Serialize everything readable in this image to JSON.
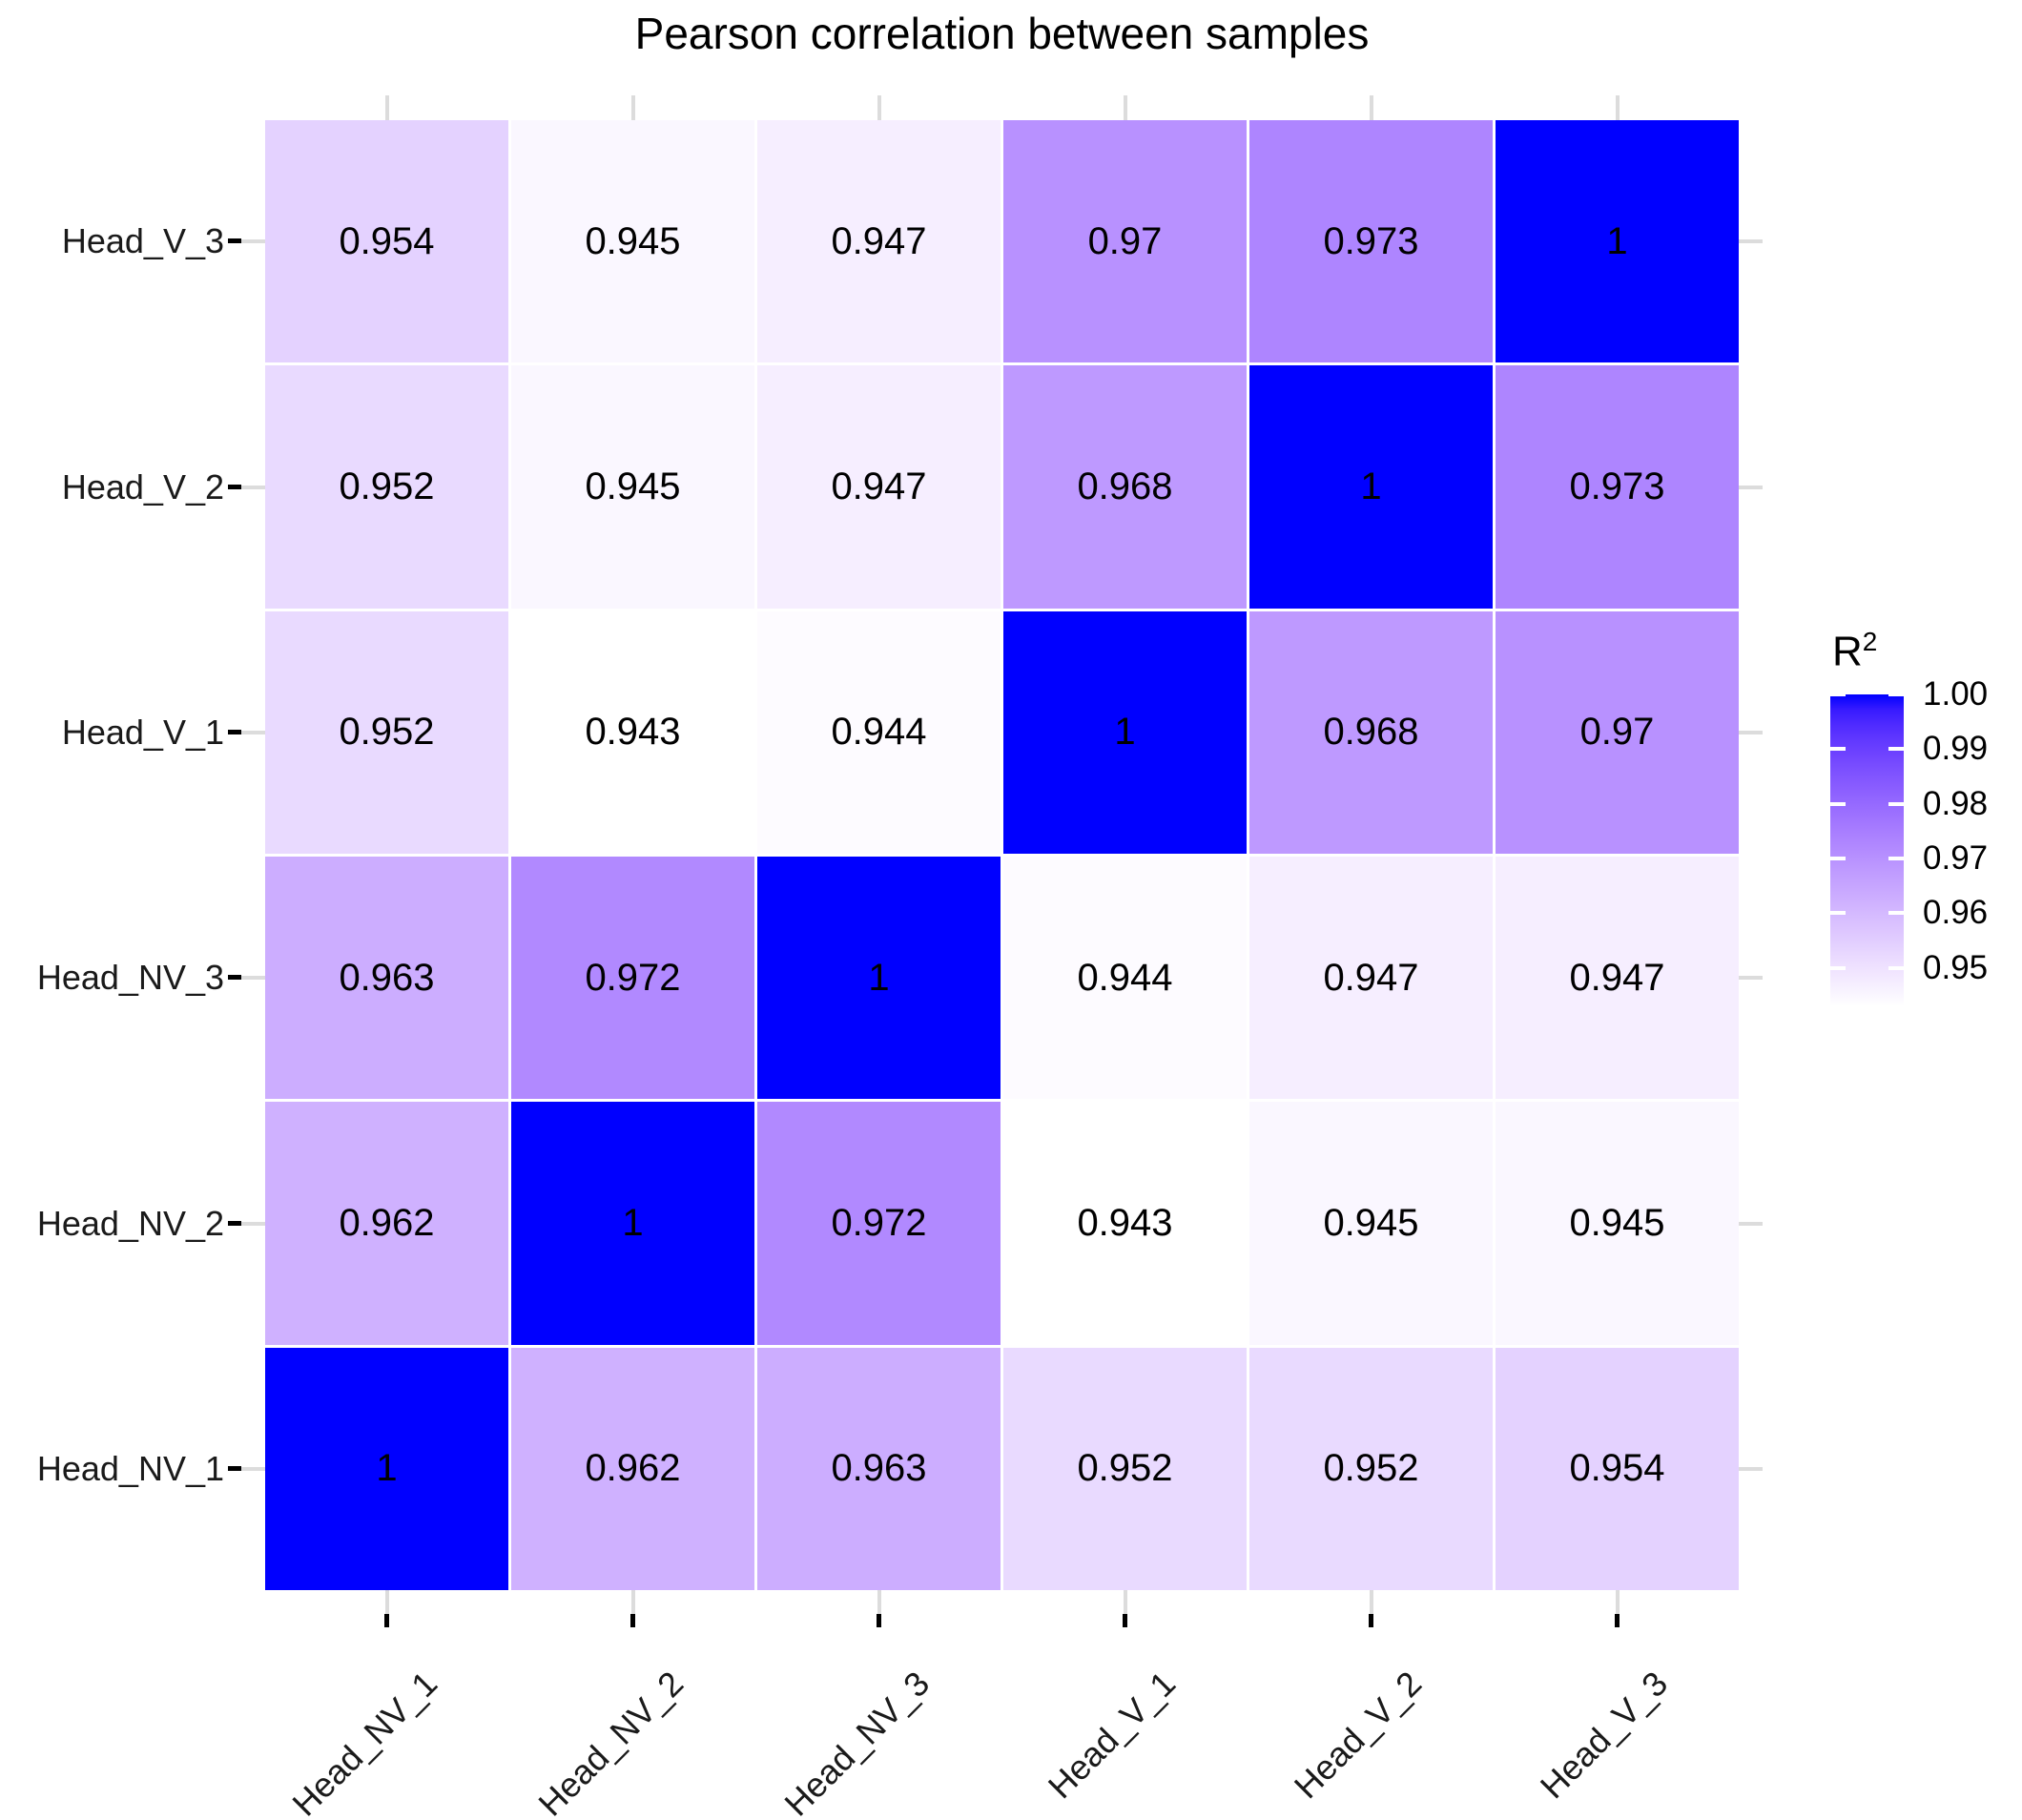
{
  "title": "Pearson correlation between samples",
  "legend": {
    "title_base": "R",
    "title_exponent": "2",
    "tick_labels": [
      "1.00",
      "0.99",
      "0.98",
      "0.97",
      "0.96",
      "0.95"
    ],
    "tick_values": [
      1.0,
      0.99,
      0.98,
      0.97,
      0.96,
      0.95
    ]
  },
  "colors": {
    "background": "#FFFFFF",
    "gradient_low": "#FFFFFF",
    "gradient_high": "#0000FF",
    "cell_text": "#000000",
    "title_text": "#000000",
    "axis_text": "#1A1A1A",
    "tick_primary": "#000000",
    "tick_secondary": "#DCDCDC",
    "legend_tick": "#FFFFFF"
  },
  "chart_data": {
    "type": "heatmap",
    "title": "Pearson correlation between samples",
    "x_categories": [
      "Head_NV_1",
      "Head_NV_2",
      "Head_NV_3",
      "Head_V_1",
      "Head_V_2",
      "Head_V_3"
    ],
    "y_categories": [
      "Head_V_3",
      "Head_V_2",
      "Head_V_1",
      "Head_NV_3",
      "Head_NV_2",
      "Head_NV_1"
    ],
    "legend_label": "R2",
    "color_scale": {
      "low": "#FFFFFF",
      "high": "#0000FF",
      "limits": [
        0.943,
        1.0
      ],
      "space": "Lab"
    },
    "rows": [
      {
        "y": "Head_V_3",
        "values": [
          0.954,
          0.945,
          0.947,
          0.97,
          0.973,
          1
        ],
        "labels": [
          "0.954",
          "0.945",
          "0.947",
          "0.97",
          "0.973",
          "1"
        ]
      },
      {
        "y": "Head_V_2",
        "values": [
          0.952,
          0.945,
          0.947,
          0.968,
          1,
          0.973
        ],
        "labels": [
          "0.952",
          "0.945",
          "0.947",
          "0.968",
          "1",
          "0.973"
        ]
      },
      {
        "y": "Head_V_1",
        "values": [
          0.952,
          0.943,
          0.944,
          1,
          0.968,
          0.97
        ],
        "labels": [
          "0.952",
          "0.943",
          "0.944",
          "1",
          "0.968",
          "0.97"
        ]
      },
      {
        "y": "Head_NV_3",
        "values": [
          0.963,
          0.972,
          1,
          0.944,
          0.947,
          0.947
        ],
        "labels": [
          "0.963",
          "0.972",
          "1",
          "0.944",
          "0.947",
          "0.947"
        ]
      },
      {
        "y": "Head_NV_2",
        "values": [
          0.962,
          1,
          0.972,
          0.943,
          0.945,
          0.945
        ],
        "labels": [
          "0.962",
          "1",
          "0.972",
          "0.943",
          "0.945",
          "0.945"
        ]
      },
      {
        "y": "Head_NV_1",
        "values": [
          1,
          0.962,
          0.963,
          0.952,
          0.952,
          0.954
        ],
        "labels": [
          "1",
          "0.962",
          "0.963",
          "0.952",
          "0.952",
          "0.954"
        ]
      }
    ]
  }
}
